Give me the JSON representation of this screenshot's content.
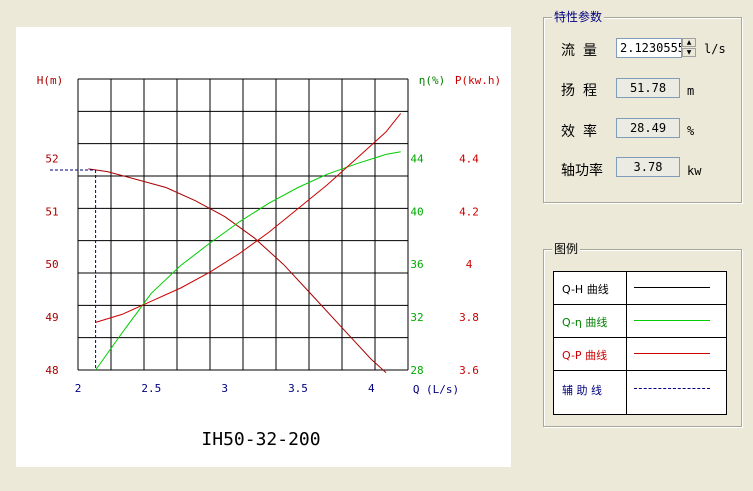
{
  "chart_title": "IH50-32-200",
  "axis": {
    "h_label": "H(m)",
    "eta_label": "η(%)",
    "p_label": "P(kw.h)",
    "q_label": "Q (L/s)"
  },
  "chart_data": {
    "type": "line",
    "title": "IH50-32-200",
    "xlabel": "Q (L/s)",
    "xlim": [
      2,
      4.25
    ],
    "x_ticks": [
      "2",
      "2.5",
      "3",
      "3.5",
      "4"
    ],
    "h_axis": {
      "label": "H(m)",
      "ylim": [
        48,
        53.5
      ],
      "ticks": [
        "48",
        "49",
        "50",
        "51",
        "52"
      ]
    },
    "eta_axis": {
      "label": "η(%)",
      "ylim": [
        28,
        50
      ],
      "ticks": [
        "28",
        "32",
        "36",
        "40",
        "44"
      ]
    },
    "p_axis": {
      "label": "P(kw.h)",
      "ylim": [
        3.6,
        4.7
      ],
      "ticks": [
        "3.6",
        "3.8",
        "4",
        "4.2",
        "4.4"
      ]
    },
    "grid": true,
    "series": [
      {
        "name": "Q-H 曲线",
        "axis": "h",
        "color": "#aa0000",
        "x": [
          2.07,
          2.2,
          2.4,
          2.6,
          2.8,
          3.0,
          3.2,
          3.4,
          3.6,
          3.8,
          4.0,
          4.1
        ],
        "y": [
          51.8,
          51.75,
          51.6,
          51.45,
          51.2,
          50.9,
          50.5,
          50.0,
          49.4,
          48.8,
          48.2,
          47.95
        ]
      },
      {
        "name": "Q-η 曲线",
        "axis": "eta",
        "color": "#00cc00",
        "x": [
          2.12,
          2.3,
          2.5,
          2.7,
          2.9,
          3.1,
          3.3,
          3.5,
          3.7,
          3.9,
          4.1,
          4.2
        ],
        "y": [
          28.0,
          30.8,
          33.8,
          35.9,
          37.6,
          39.2,
          40.6,
          41.8,
          42.8,
          43.6,
          44.3,
          44.5
        ]
      },
      {
        "name": "Q-P 曲线",
        "axis": "p",
        "color": "#cc0000",
        "x": [
          2.12,
          2.3,
          2.5,
          2.7,
          2.9,
          3.1,
          3.3,
          3.5,
          3.7,
          3.9,
          4.1,
          4.2
        ],
        "y": [
          3.78,
          3.81,
          3.86,
          3.91,
          3.97,
          4.04,
          4.12,
          4.21,
          4.3,
          4.4,
          4.5,
          4.57
        ]
      }
    ],
    "helper_line": {
      "name": "辅助线",
      "x": 2.12,
      "y": 51.78,
      "color": "#000080"
    }
  },
  "params": {
    "title": "特性参数",
    "flow": {
      "label": "流量",
      "value": "2.1230555",
      "unit": "l/s"
    },
    "head": {
      "label": "扬程",
      "value": "51.78",
      "unit": "m"
    },
    "eff": {
      "label": "效率",
      "value": "28.49",
      "unit": "%"
    },
    "power": {
      "label": "轴功率",
      "value": "3.78",
      "unit": "kw"
    }
  },
  "legend": {
    "title": "图例",
    "items": [
      {
        "label": "Q-H 曲线",
        "color": "#000000",
        "line_color": "#000000",
        "dashed": false
      },
      {
        "label": "Q-η 曲线",
        "color": "#008000",
        "line_color": "#00cc00",
        "dashed": false
      },
      {
        "label": "Q-P 曲线",
        "color": "#cc0000",
        "line_color": "#cc0000",
        "dashed": false
      },
      {
        "label": "辅 助 线",
        "color": "#000080",
        "line_color": "#000080",
        "dashed": true
      }
    ]
  }
}
